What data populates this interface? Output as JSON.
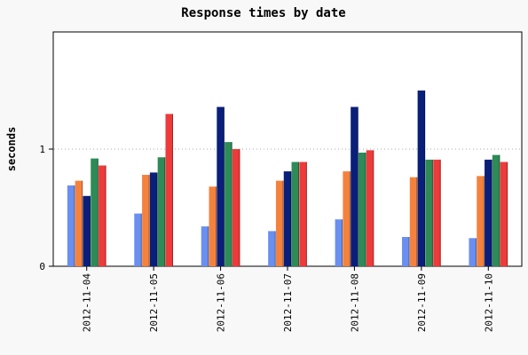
{
  "chart_data": {
    "type": "bar",
    "title": "Response times by date",
    "xlabel": "",
    "ylabel": "seconds",
    "ylim": [
      0,
      2
    ],
    "yticks": [
      "0",
      "1"
    ],
    "grid": "horizontal dotted at 1",
    "legend": "none",
    "categories": [
      "2012-11-04",
      "2012-11-05",
      "2012-11-06",
      "2012-11-07",
      "2012-11-08",
      "2012-11-09",
      "2012-11-10"
    ],
    "series": [
      {
        "color": "#6a8ff0",
        "values": [
          0.69,
          0.45,
          0.34,
          0.3,
          0.4,
          0.25,
          0.24
        ]
      },
      {
        "color": "#f5823c",
        "values": [
          0.73,
          0.78,
          0.68,
          0.73,
          0.81,
          0.76,
          0.77
        ]
      },
      {
        "color": "#0a1f7a",
        "values": [
          0.6,
          0.8,
          1.36,
          0.81,
          1.36,
          1.5,
          0.91
        ]
      },
      {
        "color": "#2e8b57",
        "values": [
          0.92,
          0.93,
          1.06,
          0.89,
          0.97,
          0.91,
          0.95
        ]
      },
      {
        "color": "#ee3a3a",
        "values": [
          0.86,
          1.3,
          1.0,
          0.89,
          0.99,
          0.91,
          0.89
        ]
      }
    ]
  }
}
